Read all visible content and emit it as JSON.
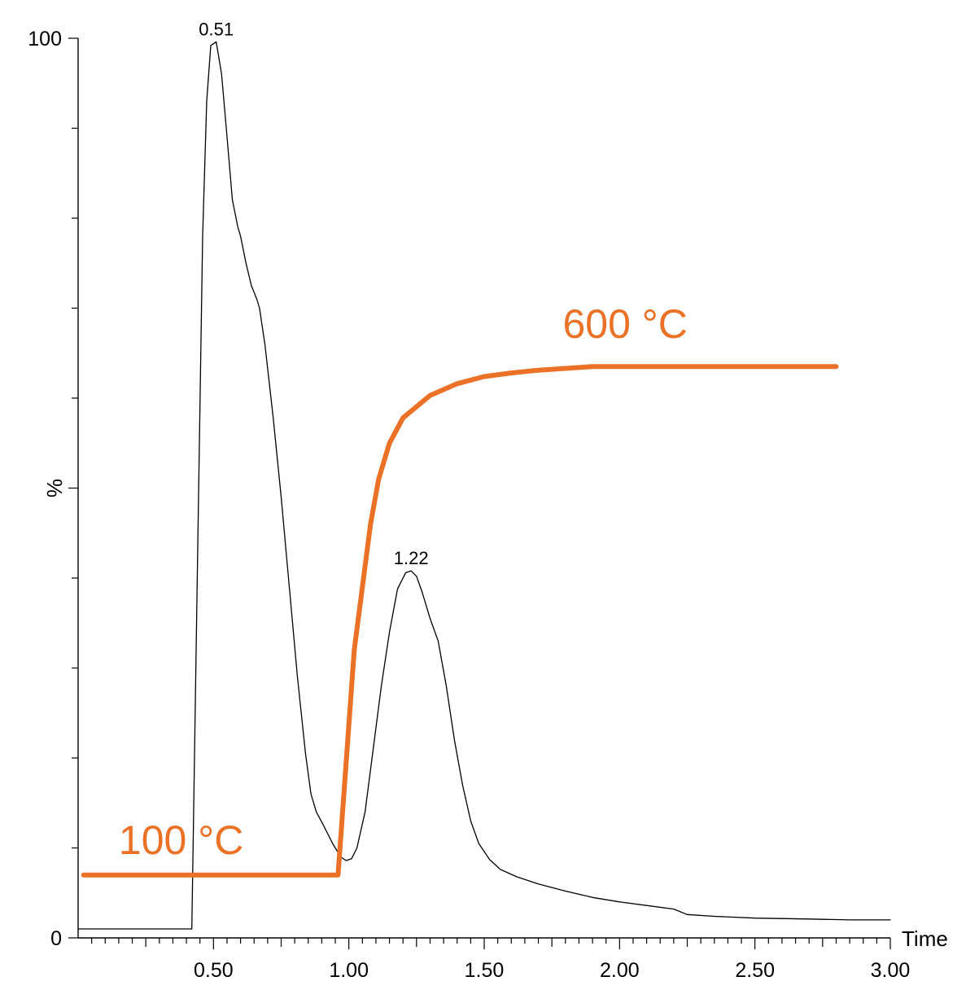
{
  "chart_data": {
    "type": "line",
    "title": "",
    "xlabel": "Time",
    "ylabel": "%",
    "xlim": [
      0.0,
      3.0
    ],
    "ylim": [
      0,
      100
    ],
    "x_ticks": [
      "0.50",
      "1.00",
      "1.50",
      "2.00",
      "2.50",
      "3.00"
    ],
    "y_ticks": [
      "0",
      "100"
    ],
    "grid": false,
    "series": [
      {
        "color": "#000000",
        "points": [
          [
            0.0,
            1.0
          ],
          [
            0.41,
            1.0
          ],
          [
            0.42,
            1.0
          ],
          [
            0.44,
            40.0
          ],
          [
            0.46,
            78.0
          ],
          [
            0.475,
            93.0
          ],
          [
            0.49,
            99.2
          ],
          [
            0.51,
            99.6
          ],
          [
            0.53,
            96.0
          ],
          [
            0.55,
            89.0
          ],
          [
            0.57,
            82.0
          ],
          [
            0.59,
            79.0
          ],
          [
            0.6,
            78.0
          ],
          [
            0.62,
            75.0
          ],
          [
            0.64,
            72.5
          ],
          [
            0.66,
            71.0
          ],
          [
            0.67,
            70.0
          ],
          [
            0.69,
            66.0
          ],
          [
            0.72,
            58.0
          ],
          [
            0.75,
            49.0
          ],
          [
            0.78,
            39.0
          ],
          [
            0.81,
            29.0
          ],
          [
            0.84,
            20.5
          ],
          [
            0.86,
            16.0
          ],
          [
            0.88,
            14.0
          ],
          [
            0.91,
            12.3
          ],
          [
            0.94,
            10.5
          ],
          [
            0.97,
            9.0
          ],
          [
            0.99,
            8.6
          ],
          [
            1.01,
            8.8
          ],
          [
            1.03,
            10.0
          ],
          [
            1.06,
            14.0
          ],
          [
            1.09,
            21.0
          ],
          [
            1.12,
            28.0
          ],
          [
            1.15,
            34.0
          ],
          [
            1.18,
            38.8
          ],
          [
            1.21,
            40.6
          ],
          [
            1.23,
            40.8
          ],
          [
            1.25,
            40.2
          ],
          [
            1.27,
            38.5
          ],
          [
            1.3,
            35.5
          ],
          [
            1.33,
            33.0
          ],
          [
            1.36,
            28.0
          ],
          [
            1.39,
            22.0
          ],
          [
            1.42,
            17.0
          ],
          [
            1.45,
            13.0
          ],
          [
            1.48,
            10.5
          ],
          [
            1.52,
            8.7
          ],
          [
            1.56,
            7.6
          ],
          [
            1.62,
            6.8
          ],
          [
            1.7,
            6.0
          ],
          [
            1.8,
            5.2
          ],
          [
            1.9,
            4.5
          ],
          [
            2.0,
            4.0
          ],
          [
            2.1,
            3.6
          ],
          [
            2.2,
            3.2
          ],
          [
            2.25,
            2.6
          ],
          [
            2.35,
            2.4
          ],
          [
            2.5,
            2.2
          ],
          [
            2.7,
            2.1
          ],
          [
            2.85,
            2.0
          ],
          [
            3.0,
            2.0
          ]
        ],
        "peaks": [
          {
            "x": 0.51,
            "y": 99.6,
            "label": "0.51"
          },
          {
            "x": 1.23,
            "y": 40.8,
            "label": "1.22"
          }
        ]
      },
      {
        "color": "#ea7125",
        "points": [
          [
            0.02,
            7.0
          ],
          [
            0.95,
            7.0
          ],
          [
            0.96,
            7.0
          ],
          [
            1.02,
            32.0
          ],
          [
            1.08,
            46.0
          ],
          [
            1.11,
            51.0
          ],
          [
            1.15,
            55.0
          ],
          [
            1.2,
            57.8
          ],
          [
            1.3,
            60.3
          ],
          [
            1.4,
            61.6
          ],
          [
            1.5,
            62.4
          ],
          [
            1.6,
            62.8
          ],
          [
            1.7,
            63.1
          ],
          [
            1.8,
            63.3
          ],
          [
            1.9,
            63.5
          ],
          [
            2.0,
            63.5
          ],
          [
            2.5,
            63.5
          ],
          [
            2.8,
            63.5
          ]
        ]
      }
    ],
    "annotations": [
      {
        "text": "100 °C",
        "x": 0.15,
        "y": 9.3,
        "color": "#ea7125"
      },
      {
        "text": "600 °C",
        "x": 1.79,
        "y": 66.7,
        "color": "#ea7125"
      }
    ]
  }
}
